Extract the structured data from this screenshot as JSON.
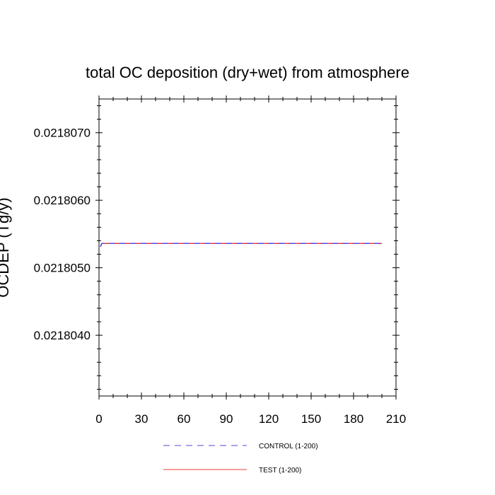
{
  "chart_data": {
    "type": "line",
    "title": "total OC deposition (dry+wet) from atmosphere",
    "xlabel": "",
    "ylabel": "OCDEP (Tg/y)",
    "xlim": [
      0,
      210
    ],
    "ylim": [
      0.0218031,
      0.0218075
    ],
    "x_ticks": [
      0,
      30,
      60,
      90,
      120,
      150,
      180,
      210
    ],
    "x_tick_labels": [
      "0",
      "30",
      "60",
      "90",
      "120",
      "150",
      "180",
      "210"
    ],
    "y_ticks": [
      0.021804,
      0.021805,
      0.021806,
      0.021807
    ],
    "y_tick_labels": [
      "0.0218040",
      "0.0218050",
      "0.0218060",
      "0.0218070"
    ],
    "grid": false,
    "legend_position": "bottom",
    "series": [
      {
        "name": "CONTROL (1-200)",
        "color": "#5a46d8",
        "style": "dashed",
        "x": [
          1,
          2,
          3,
          200
        ],
        "y": [
          0.02180531,
          0.02180536,
          0.02180536,
          0.02180536
        ]
      },
      {
        "name": "TEST (1-200)",
        "color": "#f03c3c",
        "style": "solid",
        "x": [
          1,
          2,
          3,
          200
        ],
        "y": [
          0.02180531,
          0.02180536,
          0.02180536,
          0.02180536
        ]
      }
    ]
  }
}
